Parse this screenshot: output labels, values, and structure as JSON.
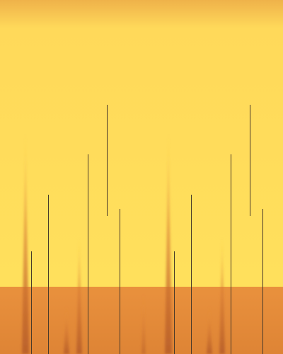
{
  "scene": {
    "description_colors": {
      "sky_top": "#EFB24A",
      "sky_mid": "#FFD95A",
      "sky_low": "#FFE05C",
      "ground": "#E9913D",
      "ground_dark": "#DE8435",
      "spike": "#C8682A",
      "spike_soft": "#D98A3A",
      "line": "#4A3A2A"
    }
  }
}
